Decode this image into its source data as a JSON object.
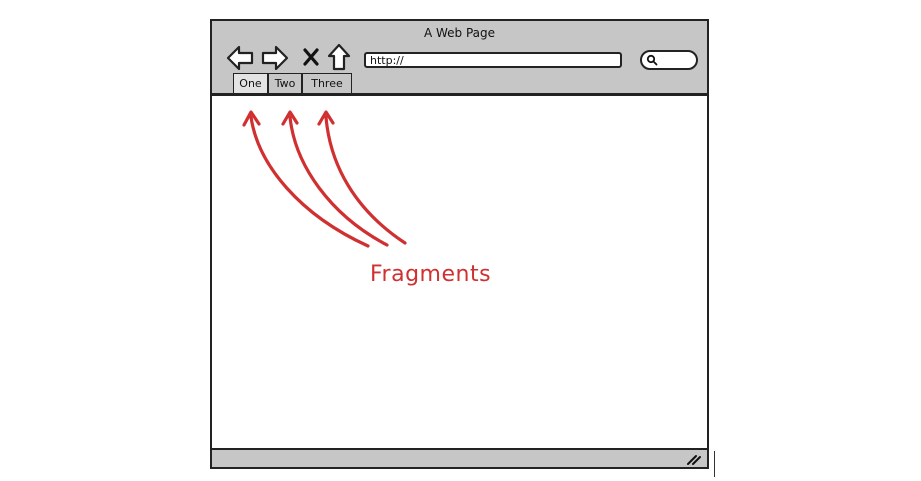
{
  "window": {
    "title": "A Web Page",
    "url": "http://",
    "tabs": [
      {
        "label": "One",
        "active": true
      },
      {
        "label": "Two",
        "active": false
      },
      {
        "label": "Three",
        "active": false
      }
    ]
  },
  "annotation": {
    "label": "Fragments",
    "color": "#d03030"
  },
  "icons": [
    "back-arrow-icon",
    "forward-arrow-icon",
    "stop-icon",
    "home-icon",
    "search-icon",
    "resize-grip-icon"
  ]
}
